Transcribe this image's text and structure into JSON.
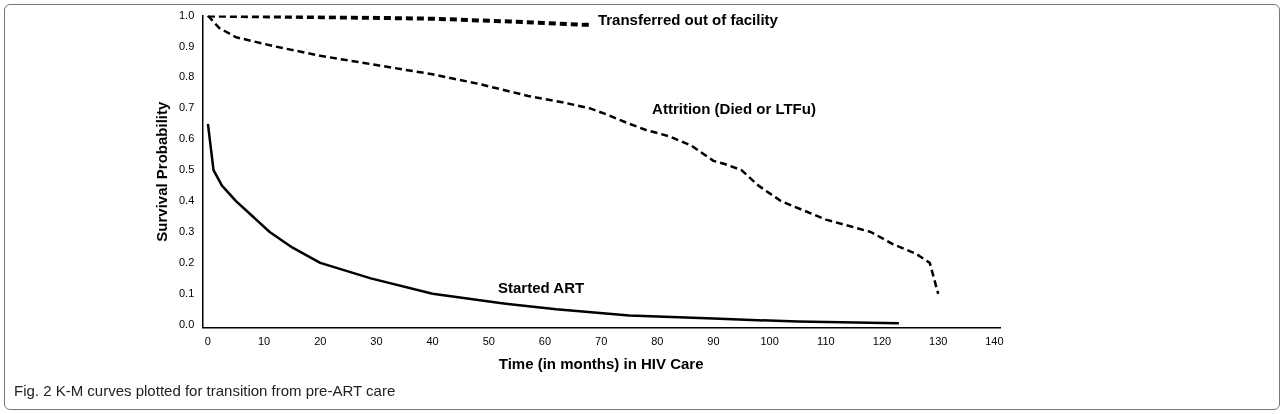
{
  "chart_data": {
    "type": "line",
    "xlabel": "Time (in months) in HIV Care",
    "ylabel": "Survival Probability",
    "xlim": [
      -1,
      141
    ],
    "xticks": [
      0,
      10,
      20,
      30,
      40,
      50,
      60,
      70,
      80,
      90,
      100,
      110,
      120,
      130,
      140
    ],
    "ylim": [
      -0.01,
      1.0
    ],
    "yticks": [
      {
        "value": 0,
        "label": "0.0"
      },
      0.1,
      0.2,
      0.3,
      0.4,
      0.5,
      0.6,
      0.7,
      0.8,
      0.9,
      {
        "value": 1,
        "label": "1.0"
      }
    ],
    "grid": false,
    "legend": false,
    "marker": "none",
    "series": [
      {
        "name": "Transferred out of facility",
        "color": "#000000",
        "line_style": "dashed",
        "x": [
          0,
          20,
          40,
          55,
          67,
          68
        ],
        "values": [
          1.0,
          0.995,
          0.99,
          0.98,
          0.97,
          0.97
        ]
      },
      {
        "name": "Attrition (Died or LTFu)",
        "color": "#000000",
        "line_style": "dashed",
        "x": [
          0,
          2,
          5,
          12,
          20,
          30,
          40,
          48,
          57,
          63,
          68,
          71,
          75,
          78,
          82,
          86,
          90,
          92,
          95,
          98,
          102,
          106,
          110,
          114,
          118,
          122,
          126,
          128.5,
          130
        ],
        "values": [
          1.0,
          0.96,
          0.93,
          0.9,
          0.87,
          0.84,
          0.81,
          0.78,
          0.74,
          0.72,
          0.7,
          0.68,
          0.65,
          0.63,
          0.61,
          0.58,
          0.53,
          0.52,
          0.5,
          0.45,
          0.4,
          0.37,
          0.34,
          0.32,
          0.3,
          0.26,
          0.23,
          0.2,
          0.1
        ]
      },
      {
        "name": "Started ART",
        "color": "#000000",
        "line_style": "solid",
        "x": [
          0,
          1,
          2.5,
          5,
          8,
          11,
          15,
          20,
          29,
          40,
          52,
          62,
          75,
          90,
          105,
          123
        ],
        "values": [
          0.65,
          0.5,
          0.45,
          0.4,
          0.35,
          0.3,
          0.25,
          0.2,
          0.15,
          0.1,
          0.07,
          0.05,
          0.03,
          0.02,
          0.01,
          0.005
        ]
      }
    ],
    "annotations": [
      "Fig. 2  K-M curves plotted for transition from pre-ART care"
    ]
  }
}
